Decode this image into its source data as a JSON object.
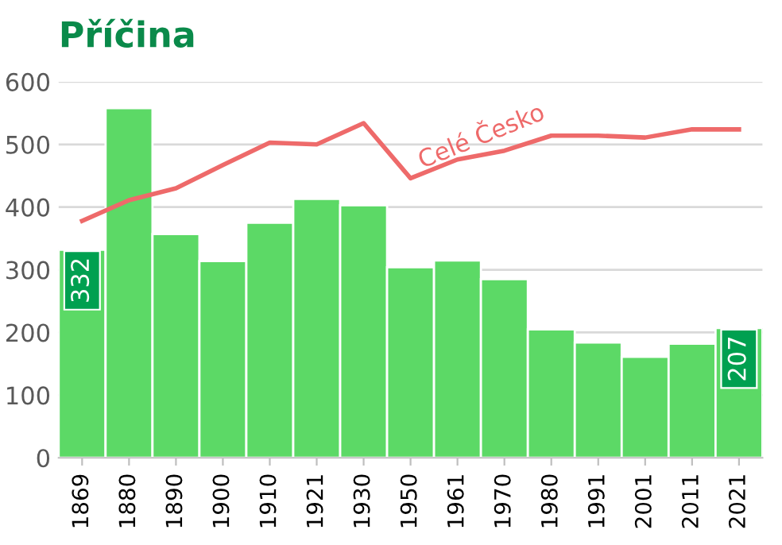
{
  "chart_data": {
    "type": "bar",
    "title": "Příčina",
    "categories": [
      "1869",
      "1880",
      "1890",
      "1900",
      "1910",
      "1921",
      "1930",
      "1950",
      "1961",
      "1970",
      "1980",
      "1991",
      "2001",
      "2011",
      "2021"
    ],
    "series": [
      {
        "color": "#5cd966",
        "values": [
          332,
          558,
          357,
          314,
          375,
          413,
          403,
          304,
          315,
          285,
          205,
          184,
          161,
          182,
          207
        ],
        "value_labels": [
          "332",
          null,
          null,
          null,
          null,
          null,
          null,
          null,
          null,
          null,
          null,
          null,
          null,
          null,
          "207"
        ]
      },
      {
        "type": "line",
        "name": "Celé Česko",
        "color": "#ee6a6a",
        "values": [
          378,
          411,
          430,
          467,
          503,
          500,
          534,
          446,
          476,
          490,
          514,
          514,
          511,
          524,
          524
        ]
      }
    ],
    "ylim": [
      0,
      600
    ],
    "yticks": [
      0,
      100,
      200,
      300,
      400,
      500,
      600
    ],
    "grid": "y",
    "legend": false,
    "marker": "none",
    "line_style": "solid"
  }
}
